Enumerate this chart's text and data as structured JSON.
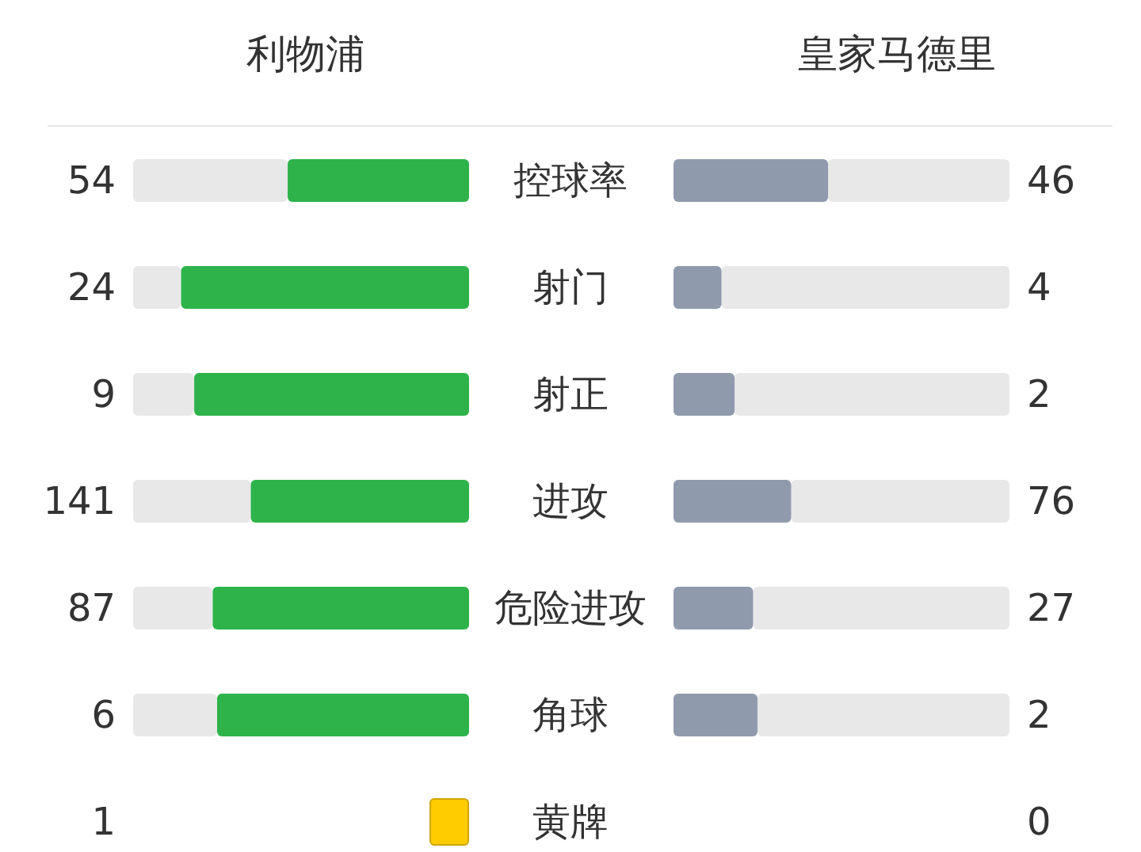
{
  "chart_data": [
    {
      "type": "other",
      "data_labels": true,
      "annotations": [
        "利物浦",
        "皇家马德里"
      ],
      "categories": [
        "控球率",
        "射门",
        "射正",
        "进攻",
        "危险进攻",
        "角球"
      ],
      "series": [
        {
          "color": "#2eb34a",
          "values": [
            54,
            24,
            9,
            141,
            87,
            6
          ]
        },
        {
          "color": "#8f9aac",
          "values": [
            46,
            4,
            2,
            76,
            27,
            2
          ]
        }
      ]
    },
    {
      "type": "other",
      "data_labels": true,
      "categories": [
        "黄牌"
      ],
      "series": [
        {
          "color": "#ffcc00",
          "values": [
            1
          ]
        },
        {
          "values": [
            0
          ]
        }
      ]
    }
  ]
}
